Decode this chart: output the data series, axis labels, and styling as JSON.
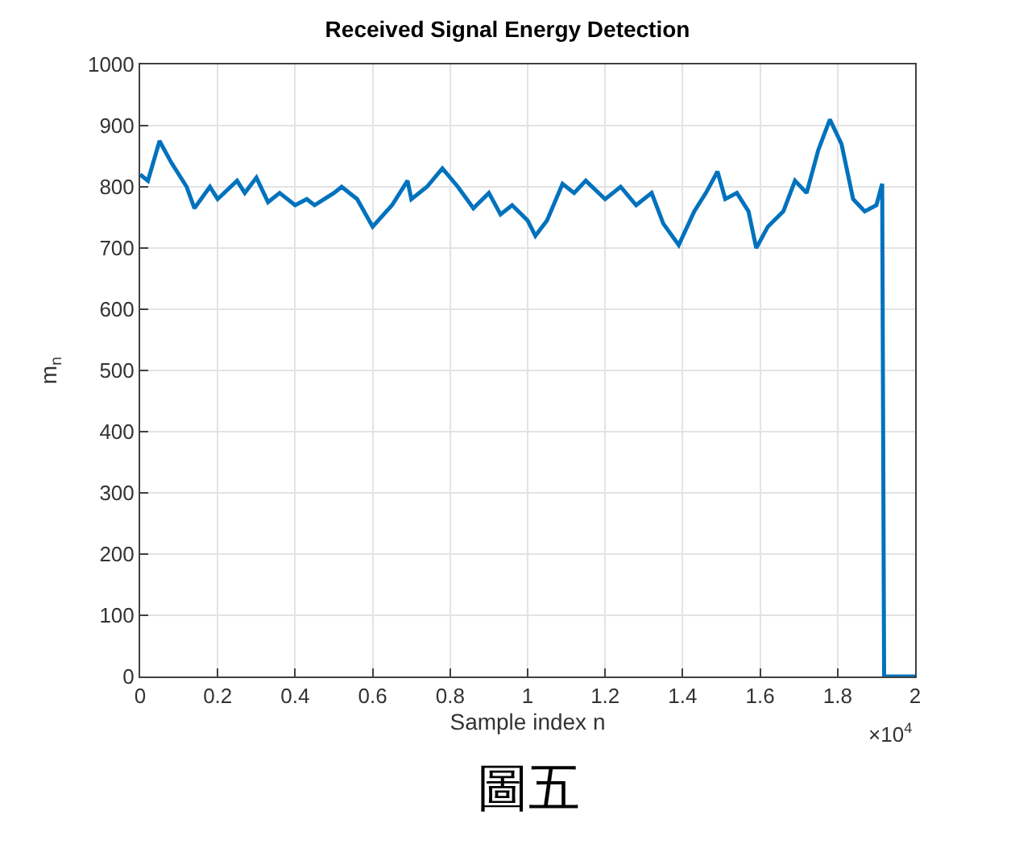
{
  "chart_data": {
    "type": "line",
    "title": "Received Signal Energy Detection",
    "xlabel": "Sample index n",
    "ylabel": "m$_{n}$",
    "annotations": [
      "×10$^{4}$",
      "圖五"
    ],
    "x": [
      0,
      0.02,
      0.05,
      0.08,
      0.12,
      0.14,
      0.18,
      0.2,
      0.25,
      0.27,
      0.3,
      0.33,
      0.36,
      0.4,
      0.43,
      0.45,
      0.5,
      0.52,
      0.56,
      0.6,
      0.65,
      0.69,
      0.7,
      0.74,
      0.78,
      0.82,
      0.86,
      0.9,
      0.93,
      0.96,
      1.0,
      1.02,
      1.05,
      1.09,
      1.12,
      1.15,
      1.2,
      1.24,
      1.28,
      1.32,
      1.35,
      1.39,
      1.43,
      1.46,
      1.49,
      1.51,
      1.54,
      1.57,
      1.59,
      1.62,
      1.66,
      1.69,
      1.72,
      1.75,
      1.78,
      1.81,
      1.84,
      1.87,
      1.9,
      1.915,
      1.92,
      2.0
    ],
    "series": [
      {
        "color": "#0072bd",
        "values": [
          820,
          810,
          875,
          840,
          800,
          765,
          800,
          780,
          810,
          790,
          815,
          775,
          790,
          770,
          780,
          770,
          790,
          800,
          780,
          735,
          770,
          810,
          780,
          800,
          830,
          800,
          765,
          790,
          755,
          770,
          745,
          720,
          745,
          805,
          790,
          810,
          780,
          800,
          770,
          790,
          740,
          705,
          760,
          790,
          825,
          780,
          790,
          760,
          700,
          735,
          760,
          810,
          790,
          860,
          910,
          870,
          780,
          760,
          770,
          805,
          0,
          0
        ]
      }
    ],
    "xlim": [
      0,
      2
    ],
    "xticks": [
      0,
      0.2,
      0.4,
      0.6,
      0.8,
      1,
      1.2,
      1.4,
      1.6,
      1.8,
      2
    ],
    "ylim": [
      0,
      1000
    ],
    "yticks": [
      0,
      100,
      200,
      300,
      400,
      500,
      600,
      700,
      800,
      900,
      1000
    ],
    "grid": true,
    "legend": false,
    "marker": "none",
    "line_style": "solid"
  }
}
